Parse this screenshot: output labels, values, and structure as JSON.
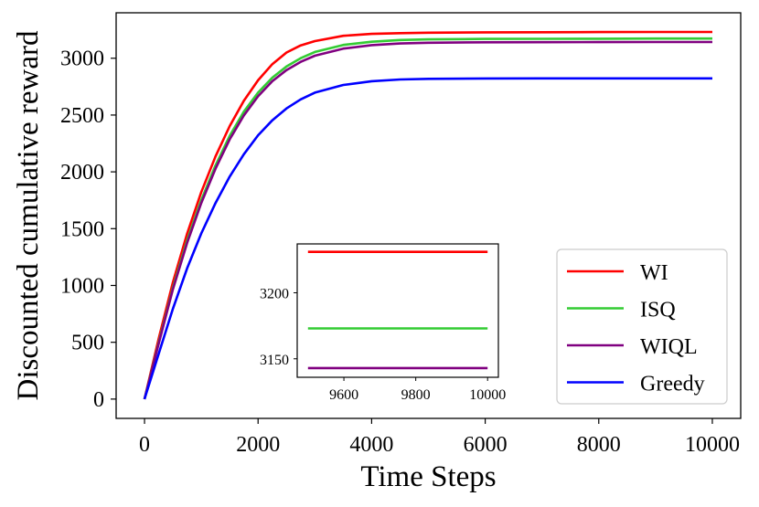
{
  "chart_data": [
    {
      "type": "line",
      "xlabel": "Time Steps",
      "ylabel": "Discounted cumulative reward",
      "xlim": [
        -500,
        10500
      ],
      "ylim": [
        -170,
        3400
      ],
      "xticks": [
        0,
        2000,
        4000,
        6000,
        8000,
        10000
      ],
      "xtick_labels": [
        "0",
        "2000",
        "4000",
        "6000",
        "8000",
        "10000"
      ],
      "yticks": [
        0,
        500,
        1000,
        1500,
        2000,
        2500,
        3000
      ],
      "ytick_labels": [
        "0",
        "500",
        "1000",
        "1500",
        "2000",
        "2500",
        "3000"
      ],
      "grid": false,
      "legend": "lower-right",
      "series": [
        {
          "name": "WI",
          "color": "#ff0000",
          "x": [
            0,
            250,
            500,
            750,
            1000,
            1250,
            1500,
            1750,
            2000,
            2250,
            2500,
            2750,
            3000,
            3500,
            4000,
            4500,
            5000,
            6000,
            7000,
            8000,
            9000,
            10000
          ],
          "y": [
            0,
            534,
            1028,
            1455,
            1822,
            2136,
            2403,
            2626,
            2806,
            2948,
            3050,
            3113,
            3151,
            3197,
            3214,
            3221,
            3225,
            3228,
            3229,
            3230,
            3231,
            3231
          ]
        },
        {
          "name": "ISQ",
          "color": "#33cc33",
          "x": [
            0,
            250,
            500,
            750,
            1000,
            1250,
            1500,
            1750,
            2000,
            2250,
            2500,
            2750,
            3000,
            3500,
            4000,
            4500,
            5000,
            6000,
            7000,
            8000,
            9000,
            10000
          ],
          "y": [
            0,
            500,
            981,
            1396,
            1751,
            2057,
            2317,
            2530,
            2697,
            2829,
            2927,
            3000,
            3055,
            3117,
            3145,
            3160,
            3166,
            3170,
            3171,
            3172,
            3173,
            3173
          ]
        },
        {
          "name": "WIQL",
          "color": "#800080",
          "x": [
            0,
            250,
            500,
            750,
            1000,
            1250,
            1500,
            1750,
            2000,
            2250,
            2500,
            2750,
            3000,
            3500,
            4000,
            4500,
            5000,
            6000,
            7000,
            8000,
            9000,
            10000
          ],
          "y": [
            0,
            490,
            967,
            1374,
            1726,
            2028,
            2286,
            2497,
            2665,
            2798,
            2896,
            2968,
            3022,
            3085,
            3115,
            3130,
            3136,
            3140,
            3141,
            3142,
            3143,
            3143
          ]
        },
        {
          "name": "Greedy",
          "color": "#0000ff",
          "x": [
            0,
            250,
            500,
            750,
            1000,
            1250,
            1500,
            1750,
            2000,
            2250,
            2500,
            2750,
            3000,
            3500,
            4000,
            4500,
            5000,
            6000,
            7000,
            8000,
            9000,
            10000
          ],
          "y": [
            0,
            400,
            796,
            1150,
            1458,
            1726,
            1958,
            2155,
            2322,
            2454,
            2558,
            2638,
            2697,
            2765,
            2798,
            2813,
            2819,
            2822,
            2823,
            2823,
            2823,
            2823
          ]
        }
      ]
    },
    {
      "type": "line",
      "inset": true,
      "xlim": [
        9470,
        10030
      ],
      "ylim": [
        3136,
        3237
      ],
      "xticks": [
        9600,
        9800,
        10000
      ],
      "xtick_labels": [
        "9600",
        "9800",
        "10000"
      ],
      "yticks": [
        3150,
        3200
      ],
      "ytick_labels": [
        "3150",
        "3200"
      ],
      "grid": false,
      "series": [
        {
          "name": "WI",
          "color": "#ff0000",
          "x": [
            9500,
            10000
          ],
          "y": [
            3231,
            3231
          ]
        },
        {
          "name": "ISQ",
          "color": "#33cc33",
          "x": [
            9500,
            10000
          ],
          "y": [
            3173,
            3173
          ]
        },
        {
          "name": "WIQL",
          "color": "#800080",
          "x": [
            9500,
            10000
          ],
          "y": [
            3143,
            3143
          ]
        }
      ]
    }
  ]
}
